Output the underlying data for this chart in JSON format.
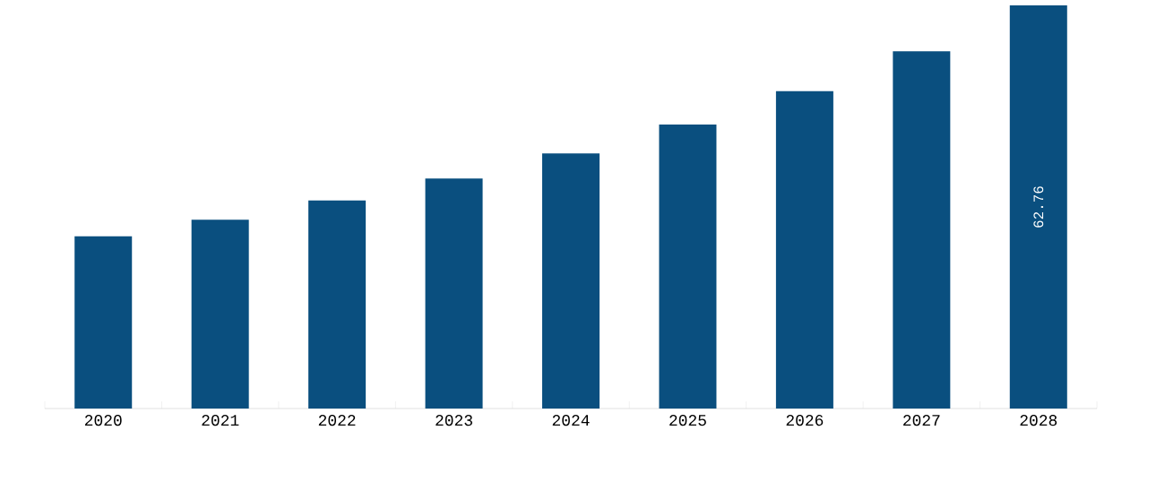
{
  "chart_data": {
    "type": "bar",
    "categories": [
      "2020",
      "2021",
      "2022",
      "2023",
      "2024",
      "2025",
      "2026",
      "2027",
      "2028"
    ],
    "values": [
      26.8,
      29.4,
      32.4,
      35.8,
      39.7,
      44.2,
      49.4,
      55.6,
      62.76
    ],
    "value_labels": [
      null,
      null,
      null,
      null,
      null,
      null,
      null,
      null,
      "62.76"
    ],
    "color": "#0a4f7f"
  }
}
